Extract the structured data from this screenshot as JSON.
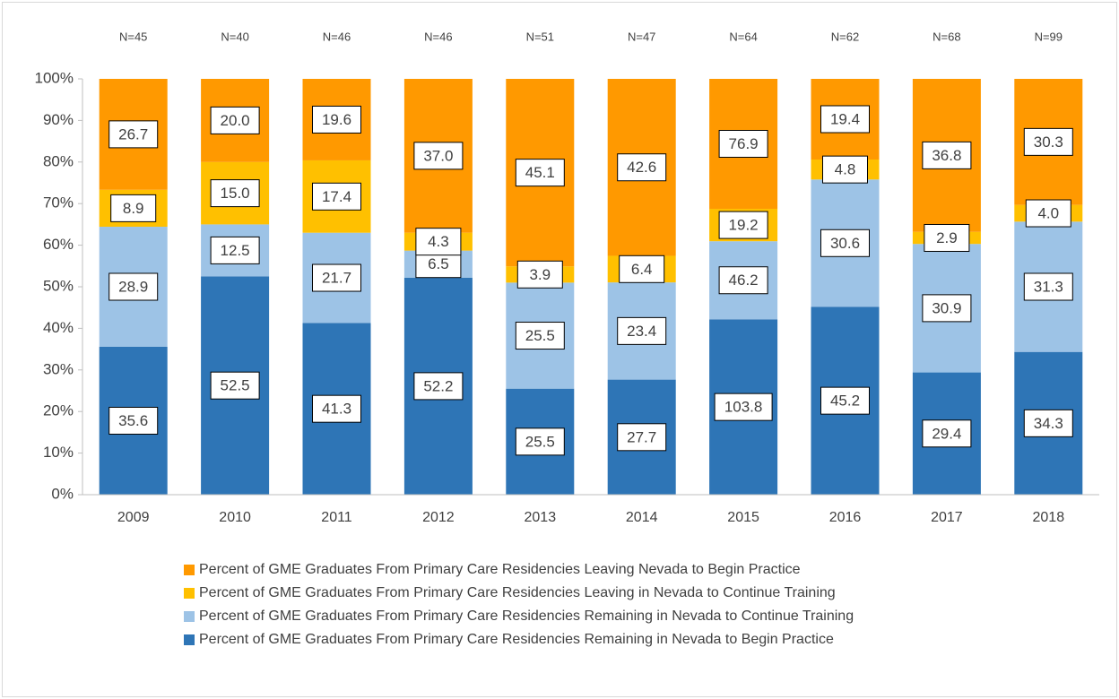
{
  "chart_data": {
    "type": "bar",
    "stacking": "percent",
    "grid": false,
    "legend": "bottom",
    "categories": [
      "2009",
      "2010",
      "2011",
      "2012",
      "2013",
      "2014",
      "2015",
      "2016",
      "2017",
      "2018"
    ],
    "annotations": [
      "N=45",
      "N=40",
      "N=46",
      "N=46",
      "N=51",
      "N=47",
      "N=64",
      "N=62",
      "N=68",
      "N=99"
    ],
    "ylim": [
      0,
      100
    ],
    "yticks": [
      {
        "value": 0,
        "label": "0%"
      },
      {
        "value": 10,
        "label": "10%"
      },
      {
        "value": 20,
        "label": "20%"
      },
      {
        "value": 30,
        "label": "30%"
      },
      {
        "value": 40,
        "label": "40%"
      },
      {
        "value": 50,
        "label": "50%"
      },
      {
        "value": 60,
        "label": "60%"
      },
      {
        "value": 70,
        "label": "70%"
      },
      {
        "value": 80,
        "label": "80%"
      },
      {
        "value": 90,
        "label": "90%"
      },
      {
        "value": 100,
        "label": "100%"
      }
    ],
    "series": [
      {
        "name": "Percent of GME Graduates From Primary Care Residencies Remaining in Nevada to Begin Practice",
        "color": "#2e75b6",
        "values": [
          35.6,
          52.5,
          41.3,
          52.2,
          25.5,
          27.7,
          103.8,
          45.2,
          29.4,
          34.3
        ],
        "value_labels": [
          "35.6",
          "52.5",
          "41.3",
          "52.2",
          "25.5",
          "27.7",
          "103.8",
          "45.2",
          "29.4",
          "34.3"
        ]
      },
      {
        "name": "Percent of GME Graduates From Primary Care Residencies Remaining in Nevada to Continue Training",
        "color": "#9dc3e6",
        "values": [
          28.9,
          12.5,
          21.7,
          6.5,
          25.5,
          23.4,
          46.2,
          30.6,
          30.9,
          31.3
        ],
        "value_labels": [
          "28.9",
          "12.5",
          "21.7",
          "6.5",
          "25.5",
          "23.4",
          "46.2",
          "30.6",
          "30.9",
          "31.3"
        ]
      },
      {
        "name": "Percent of GME Graduates From Primary Care Residencies Leaving in Nevada to Continue Training",
        "color": "#ffc000",
        "values": [
          8.9,
          15.0,
          17.4,
          4.3,
          3.9,
          6.4,
          19.2,
          4.8,
          2.9,
          4.0
        ],
        "value_labels": [
          "8.9",
          "15.0",
          "17.4",
          "4.3",
          "3.9",
          "6.4",
          "19.2",
          "4.8",
          "2.9",
          "4.0"
        ]
      },
      {
        "name": "Percent of GME Graduates From Primary Care Residencies Leaving Nevada to Begin Practice",
        "color": "#ff9900",
        "values": [
          26.7,
          20.0,
          19.6,
          37.0,
          45.1,
          42.6,
          76.9,
          19.4,
          36.8,
          30.3
        ],
        "value_labels": [
          "26.7",
          "20.0",
          "19.6",
          "37.0",
          "45.1",
          "42.6",
          "76.9",
          "19.4",
          "36.8",
          "30.3"
        ]
      }
    ]
  }
}
